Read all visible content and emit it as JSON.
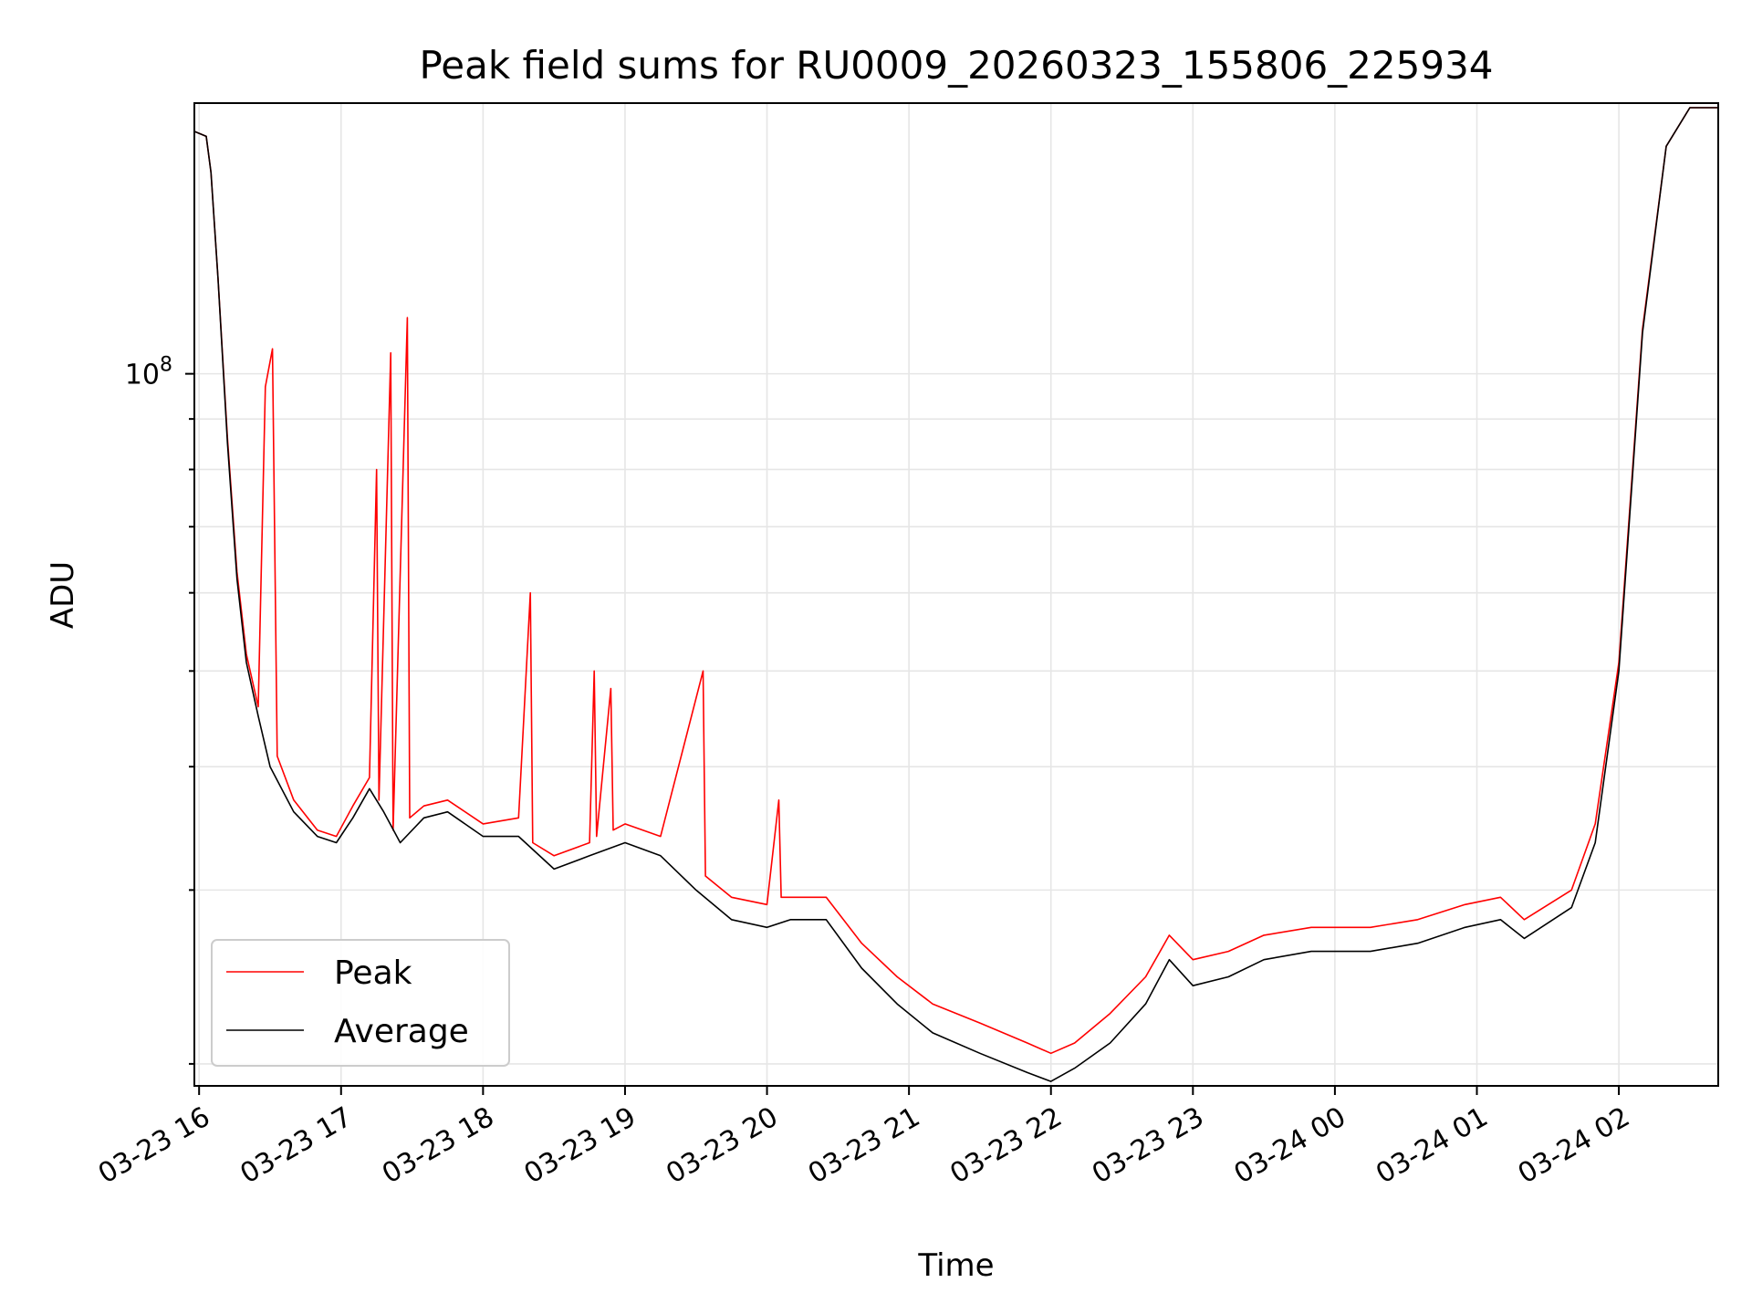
{
  "chart_data": {
    "type": "line",
    "title": "Peak field sums for RU0009_20260323_155806_225934",
    "xlabel": "Time",
    "ylabel": "ADU",
    "y_scale": "log",
    "ylim": [
      19000000,
      188000000
    ],
    "xlim": [
      "03-23 15:58",
      "03-24 02:42"
    ],
    "x_ticks": [
      "03-23 16",
      "03-23 17",
      "03-23 18",
      "03-23 19",
      "03-23 20",
      "03-23 21",
      "03-23 22",
      "03-23 23",
      "03-24 00",
      "03-24 01",
      "03-24 02"
    ],
    "y_major_tick": "10^8",
    "grid": true,
    "legend_position": "lower-left",
    "series": [
      {
        "name": "Average",
        "color": "#000000",
        "points": [
          [
            "03-23 15:58",
            176000000
          ],
          [
            "03-23 16:03",
            174000000
          ],
          [
            "03-23 16:05",
            160000000
          ],
          [
            "03-23 16:08",
            125000000
          ],
          [
            "03-23 16:12",
            85000000
          ],
          [
            "03-23 16:16",
            62000000
          ],
          [
            "03-23 16:20",
            51000000
          ],
          [
            "03-23 16:25",
            45000000
          ],
          [
            "03-23 16:30",
            40000000
          ],
          [
            "03-23 16:40",
            36000000
          ],
          [
            "03-23 16:50",
            34000000
          ],
          [
            "03-23 16:58",
            33500000
          ],
          [
            "03-23 17:05",
            35500000
          ],
          [
            "03-23 17:12",
            38000000
          ],
          [
            "03-23 17:18",
            36000000
          ],
          [
            "03-23 17:25",
            33500000
          ],
          [
            "03-23 17:35",
            35500000
          ],
          [
            "03-23 17:45",
            36000000
          ],
          [
            "03-23 18:00",
            34000000
          ],
          [
            "03-23 18:15",
            34000000
          ],
          [
            "03-23 18:30",
            31500000
          ],
          [
            "03-23 18:45",
            32500000
          ],
          [
            "03-23 19:00",
            33500000
          ],
          [
            "03-23 19:15",
            32500000
          ],
          [
            "03-23 19:30",
            30000000
          ],
          [
            "03-23 19:45",
            28000000
          ],
          [
            "03-23 20:00",
            27500000
          ],
          [
            "03-23 20:10",
            28000000
          ],
          [
            "03-23 20:25",
            28000000
          ],
          [
            "03-23 20:40",
            25000000
          ],
          [
            "03-23 20:55",
            23000000
          ],
          [
            "03-23 21:10",
            21500000
          ],
          [
            "03-23 21:30",
            20500000
          ],
          [
            "03-23 21:50",
            19600000
          ],
          [
            "03-23 22:00",
            19200000
          ],
          [
            "03-23 22:10",
            19800000
          ],
          [
            "03-23 22:25",
            21000000
          ],
          [
            "03-23 22:40",
            23000000
          ],
          [
            "03-23 22:50",
            25500000
          ],
          [
            "03-23 23:00",
            24000000
          ],
          [
            "03-23 23:15",
            24500000
          ],
          [
            "03-23 23:30",
            25500000
          ],
          [
            "03-23 23:50",
            26000000
          ],
          [
            "03-24 00:15",
            26000000
          ],
          [
            "03-24 00:35",
            26500000
          ],
          [
            "03-24 00:55",
            27500000
          ],
          [
            "03-24 01:10",
            28000000
          ],
          [
            "03-24 01:20",
            26800000
          ],
          [
            "03-24 01:40",
            28800000
          ],
          [
            "03-24 01:50",
            33500000
          ],
          [
            "03-24 02:00",
            50000000
          ],
          [
            "03-24 02:10",
            110000000
          ],
          [
            "03-24 02:20",
            170000000
          ],
          [
            "03-24 02:30",
            186000000
          ],
          [
            "03-24 02:42",
            186000000
          ]
        ]
      },
      {
        "name": "Peak",
        "color": "#ff0000",
        "points": [
          [
            "03-23 15:58",
            176000000
          ],
          [
            "03-23 16:03",
            174000000
          ],
          [
            "03-23 16:05",
            160000000
          ],
          [
            "03-23 16:08",
            125000000
          ],
          [
            "03-23 16:12",
            86000000
          ],
          [
            "03-23 16:16",
            63000000
          ],
          [
            "03-23 16:20",
            52000000
          ],
          [
            "03-23 16:25",
            46000000
          ],
          [
            "03-23 16:28",
            97000000
          ],
          [
            "03-23 16:31",
            106000000
          ],
          [
            "03-23 16:33",
            41000000
          ],
          [
            "03-23 16:40",
            37000000
          ],
          [
            "03-23 16:50",
            34500000
          ],
          [
            "03-23 16:58",
            34000000
          ],
          [
            "03-23 17:05",
            36500000
          ],
          [
            "03-23 17:12",
            39000000
          ],
          [
            "03-23 17:15",
            80000000
          ],
          [
            "03-23 17:16",
            37000000
          ],
          [
            "03-23 17:21",
            105000000
          ],
          [
            "03-23 17:22",
            34500000
          ],
          [
            "03-23 17:28",
            114000000
          ],
          [
            "03-23 17:29",
            35500000
          ],
          [
            "03-23 17:35",
            36500000
          ],
          [
            "03-23 17:45",
            37000000
          ],
          [
            "03-23 18:00",
            35000000
          ],
          [
            "03-23 18:15",
            35500000
          ],
          [
            "03-23 18:20",
            60000000
          ],
          [
            "03-23 18:21",
            33500000
          ],
          [
            "03-23 18:30",
            32500000
          ],
          [
            "03-23 18:45",
            33500000
          ],
          [
            "03-23 18:47",
            50000000
          ],
          [
            "03-23 18:48",
            34000000
          ],
          [
            "03-23 18:54",
            48000000
          ],
          [
            "03-23 18:55",
            34500000
          ],
          [
            "03-23 19:00",
            35000000
          ],
          [
            "03-23 19:15",
            34000000
          ],
          [
            "03-23 19:33",
            50000000
          ],
          [
            "03-23 19:34",
            31000000
          ],
          [
            "03-23 19:45",
            29500000
          ],
          [
            "03-23 20:00",
            29000000
          ],
          [
            "03-23 20:05",
            37000000
          ],
          [
            "03-23 20:06",
            29500000
          ],
          [
            "03-23 20:25",
            29500000
          ],
          [
            "03-23 20:40",
            26500000
          ],
          [
            "03-23 20:55",
            24500000
          ],
          [
            "03-23 21:10",
            23000000
          ],
          [
            "03-23 21:30",
            22000000
          ],
          [
            "03-23 21:50",
            21000000
          ],
          [
            "03-23 22:00",
            20500000
          ],
          [
            "03-23 22:10",
            21000000
          ],
          [
            "03-23 22:25",
            22500000
          ],
          [
            "03-23 22:40",
            24500000
          ],
          [
            "03-23 22:50",
            27000000
          ],
          [
            "03-23 23:00",
            25500000
          ],
          [
            "03-23 23:15",
            26000000
          ],
          [
            "03-23 23:30",
            27000000
          ],
          [
            "03-23 23:50",
            27500000
          ],
          [
            "03-24 00:15",
            27500000
          ],
          [
            "03-24 00:35",
            28000000
          ],
          [
            "03-24 00:55",
            29000000
          ],
          [
            "03-24 01:10",
            29500000
          ],
          [
            "03-24 01:20",
            28000000
          ],
          [
            "03-24 01:40",
            30000000
          ],
          [
            "03-24 01:50",
            35000000
          ],
          [
            "03-24 02:00",
            51000000
          ],
          [
            "03-24 02:10",
            111000000
          ],
          [
            "03-24 02:20",
            170000000
          ],
          [
            "03-24 02:30",
            186000000
          ],
          [
            "03-24 02:42",
            186000000
          ]
        ]
      }
    ]
  }
}
